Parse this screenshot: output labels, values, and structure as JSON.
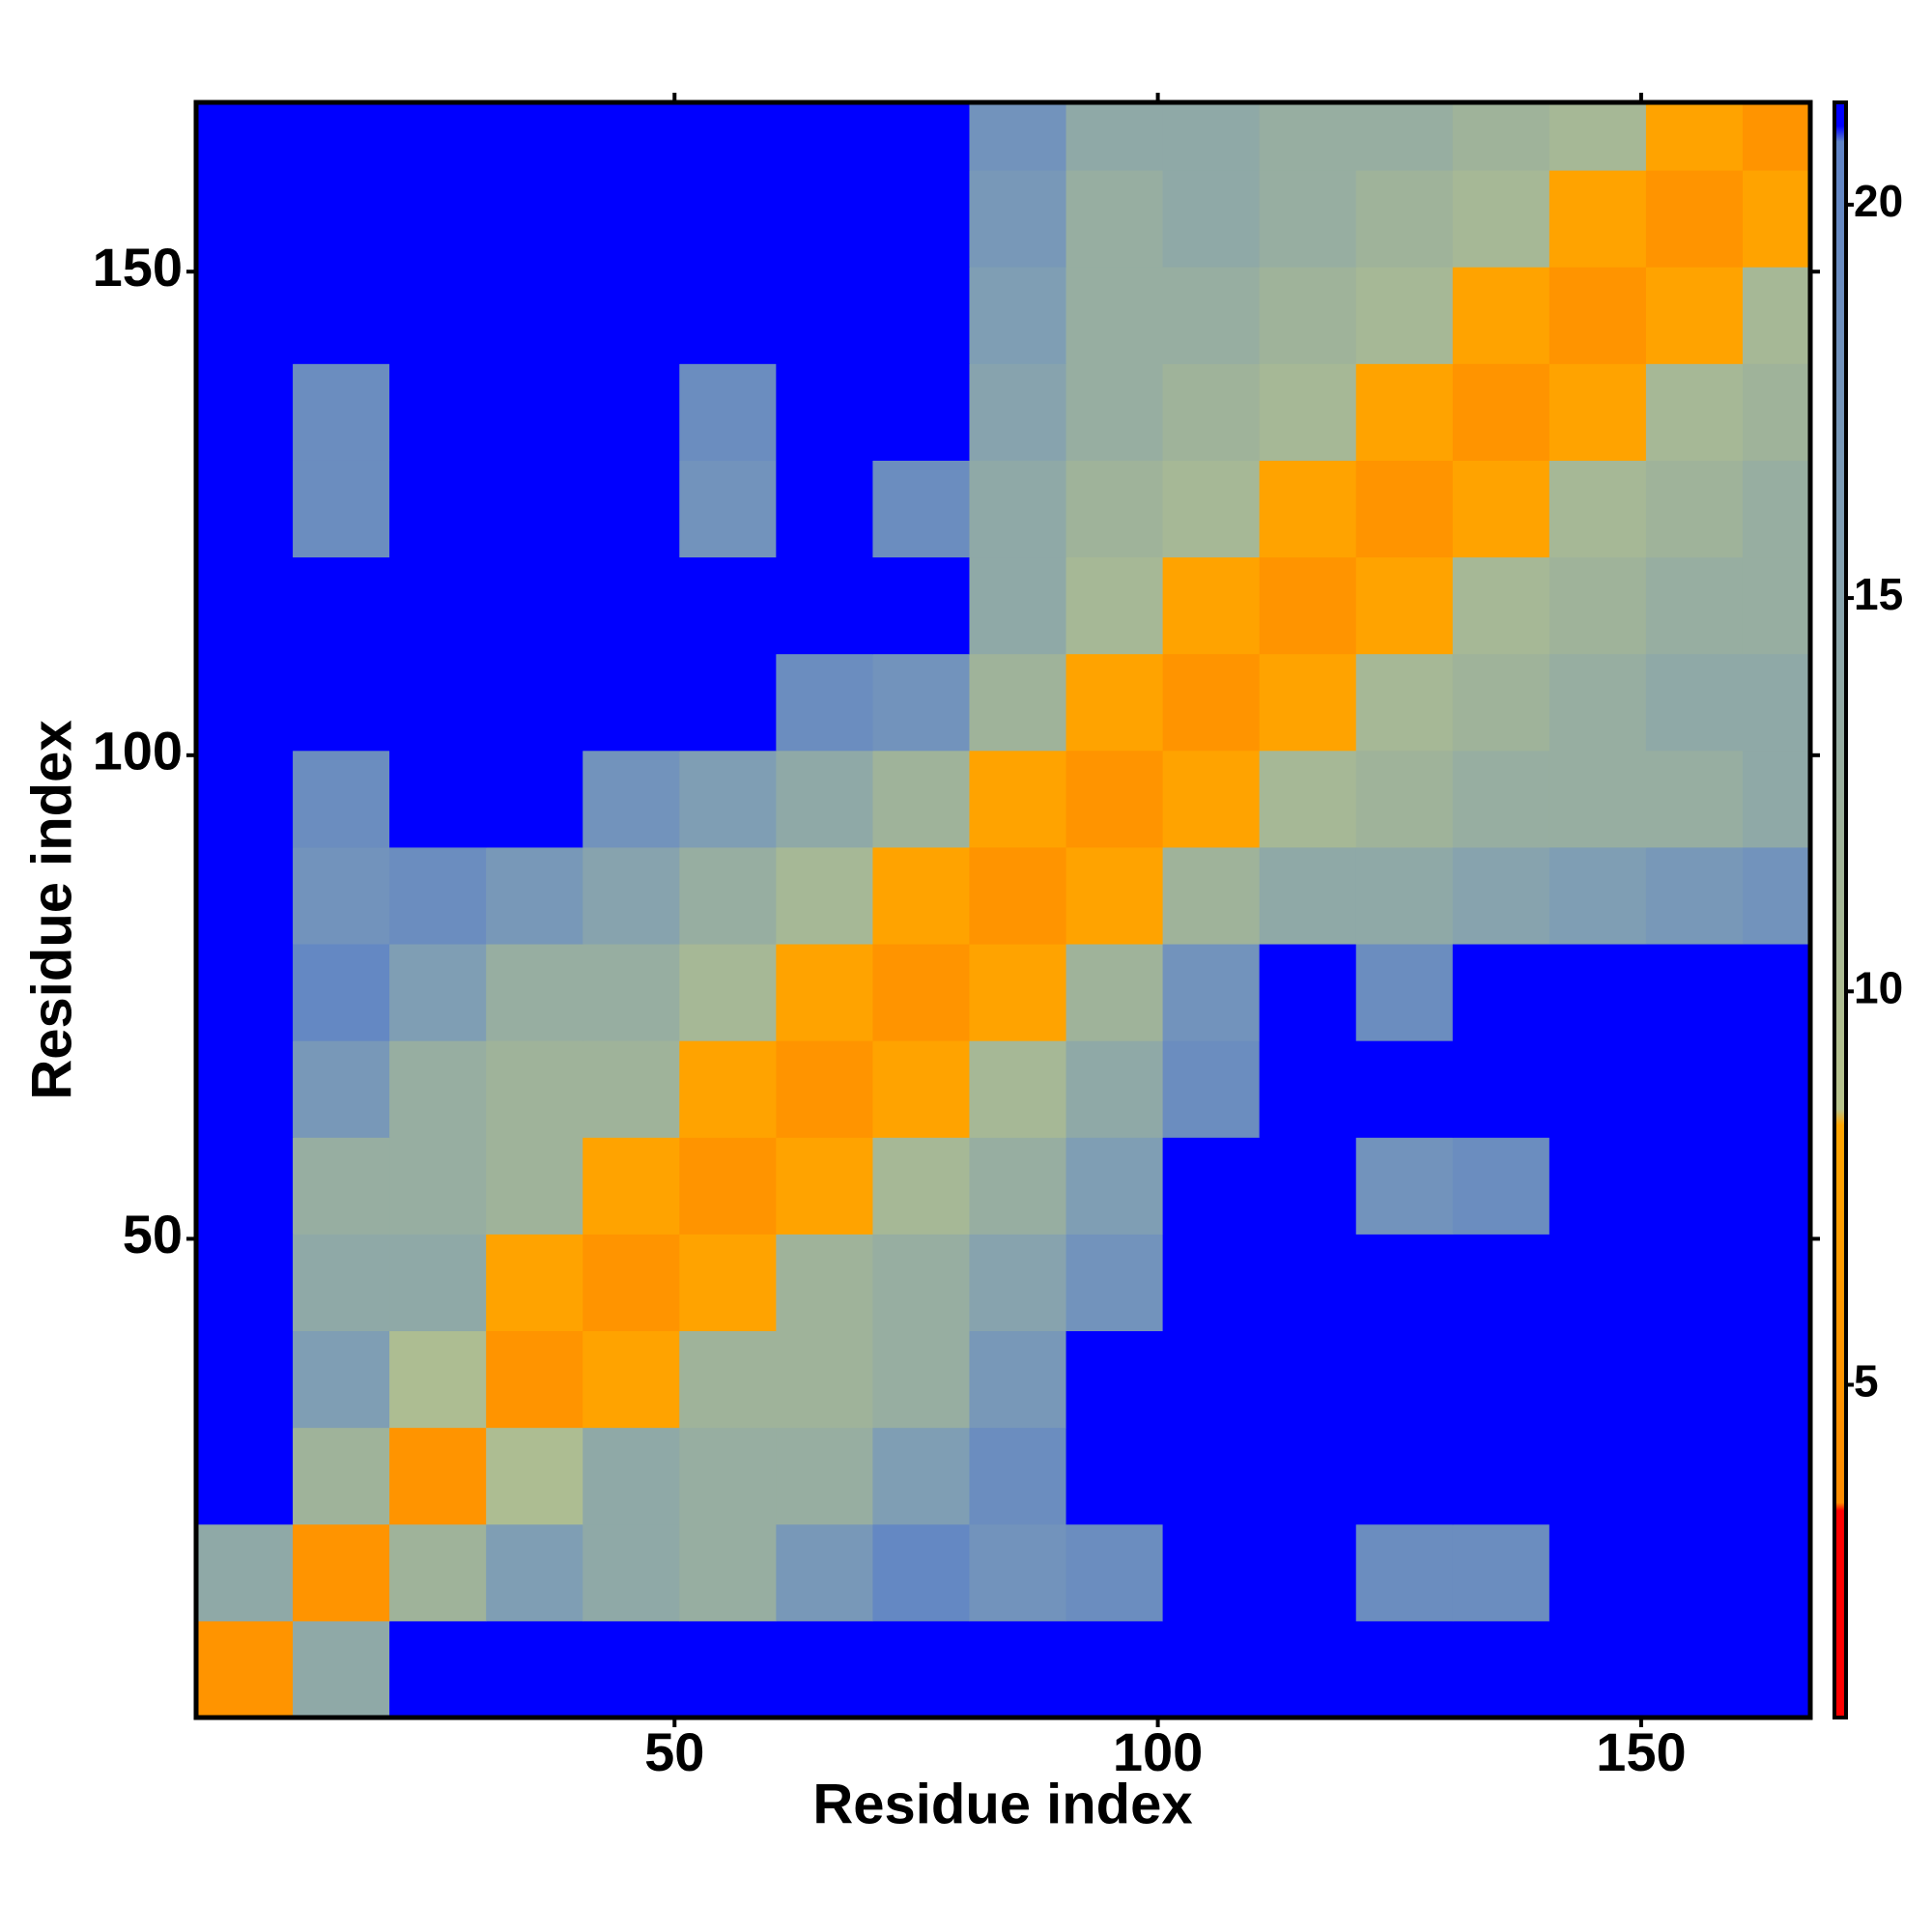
{
  "chart_data": {
    "type": "heatmap",
    "x_label": "Residue index",
    "y_label": "Residue index",
    "bins": [
      0.5,
      10.5,
      20.5,
      30.5,
      40.5,
      50.5,
      60.5,
      70.5,
      80.5,
      90.5,
      100.5,
      110.5,
      120.5,
      130.5,
      140.5,
      150.5,
      160.5,
      167.5
    ],
    "xlim": [
      0.5,
      167.5
    ],
    "ylim": [
      0.5,
      167.5
    ],
    "xticks": [
      50,
      100,
      150
    ],
    "yticks": [
      50,
      100,
      150
    ],
    "zlim": [
      0.77,
      21.3
    ],
    "zticks": [
      5,
      10,
      15,
      20
    ],
    "colorscale": [
      [
        0.77,
        "#ff0000"
      ],
      [
        3.4,
        "#ff0000"
      ],
      [
        3.5,
        "#ff8c00"
      ],
      [
        8.3,
        "#ffa500"
      ],
      [
        8.5,
        "#b8c48c"
      ],
      [
        12,
        "#9fb39a"
      ],
      [
        16,
        "#7f9eb4"
      ],
      [
        20.8,
        "#5f83c6"
      ],
      [
        21,
        "#0000ff"
      ],
      [
        21.3,
        "#0000ff"
      ]
    ],
    "z": [
      [
        5,
        14,
        22,
        22,
        22,
        22,
        22,
        22,
        22,
        22,
        22,
        22,
        22,
        22,
        22,
        22,
        22
      ],
      [
        14,
        5,
        12,
        16,
        14,
        13,
        17,
        20,
        18,
        19,
        22,
        22,
        19,
        19,
        22,
        22,
        22
      ],
      [
        22,
        12,
        5,
        10,
        14,
        13,
        13,
        16,
        19,
        22,
        22,
        22,
        22,
        22,
        22,
        22,
        22
      ],
      [
        22,
        16,
        10,
        5,
        8,
        12,
        12,
        13,
        17,
        22,
        22,
        22,
        22,
        22,
        22,
        22,
        22
      ],
      [
        22,
        14,
        14,
        8,
        5,
        8,
        12,
        13,
        15,
        18,
        22,
        22,
        22,
        22,
        22,
        22,
        22
      ],
      [
        22,
        13,
        13,
        12,
        8,
        5,
        8,
        11,
        13,
        16,
        22,
        22,
        18,
        19,
        22,
        22,
        22
      ],
      [
        22,
        17,
        13,
        12,
        12,
        8,
        5,
        8,
        11,
        14,
        19,
        22,
        22,
        22,
        22,
        22,
        22
      ],
      [
        22,
        20,
        16,
        13,
        13,
        11,
        8,
        5,
        8,
        12,
        18,
        22,
        19,
        22,
        22,
        22,
        22
      ],
      [
        22,
        18,
        19,
        17,
        15,
        13,
        11,
        8,
        5,
        8,
        12,
        14,
        14,
        15,
        16,
        17,
        18
      ],
      [
        22,
        19,
        22,
        22,
        18,
        16,
        14,
        12,
        8,
        5,
        8,
        11,
        12,
        13,
        13,
        13,
        14
      ],
      [
        22,
        22,
        22,
        22,
        22,
        22,
        19,
        18,
        12,
        8,
        5,
        8,
        11,
        12,
        13,
        14,
        14
      ],
      [
        22,
        22,
        22,
        22,
        22,
        22,
        22,
        22,
        14,
        11,
        8,
        5,
        8,
        11,
        12,
        13,
        13
      ],
      [
        22,
        19,
        22,
        22,
        22,
        18,
        22,
        19,
        14,
        12,
        11,
        8,
        5,
        8,
        11,
        12,
        13
      ],
      [
        22,
        19,
        22,
        22,
        22,
        19,
        22,
        22,
        15,
        13,
        12,
        11,
        8,
        5,
        8,
        11,
        12
      ],
      [
        22,
        22,
        22,
        22,
        22,
        22,
        22,
        22,
        16,
        13,
        13,
        12,
        11,
        8,
        5,
        8,
        11
      ],
      [
        22,
        22,
        22,
        22,
        22,
        22,
        22,
        22,
        17,
        13,
        14,
        13,
        12,
        11,
        8,
        5,
        8
      ],
      [
        22,
        22,
        22,
        22,
        22,
        22,
        22,
        22,
        18,
        14,
        14,
        13,
        13,
        12,
        11,
        8,
        5
      ]
    ]
  }
}
